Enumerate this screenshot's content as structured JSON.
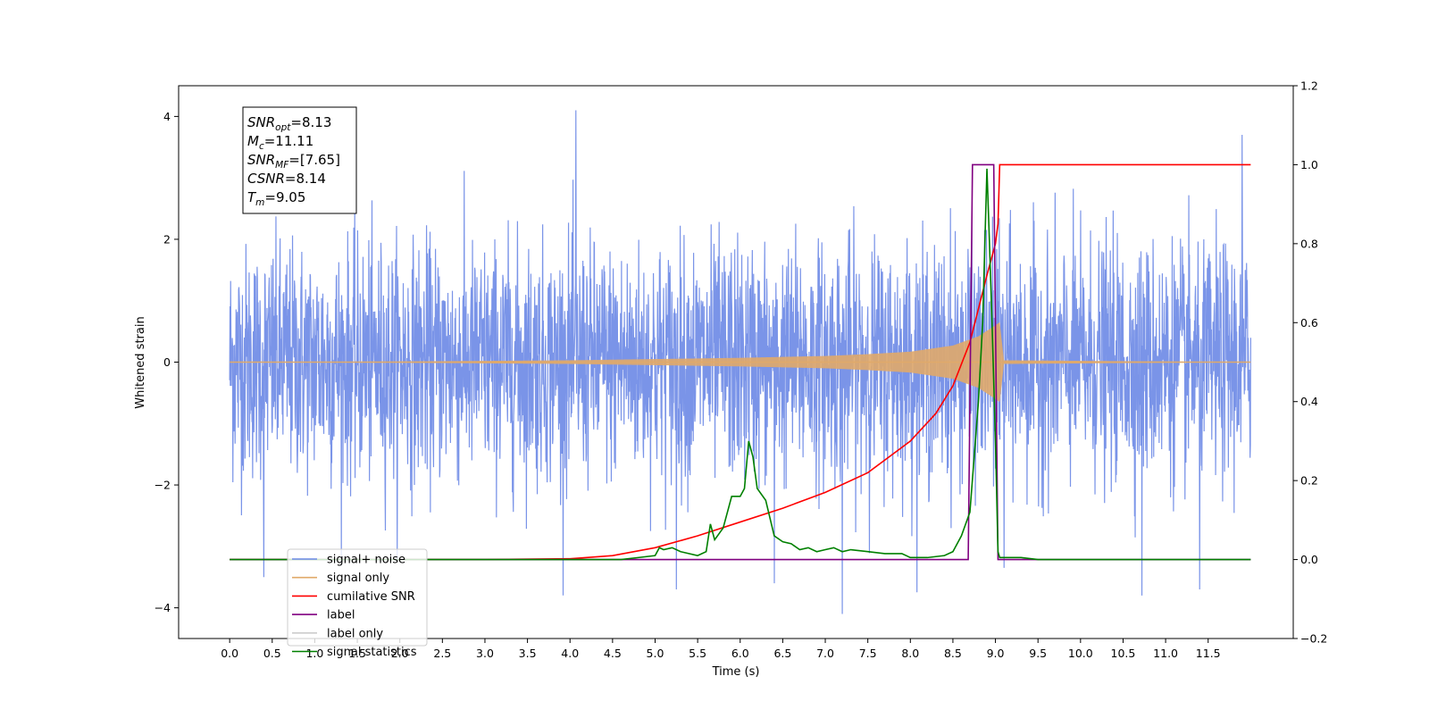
{
  "chart_data": {
    "type": "line",
    "xlabel": "Time (s)",
    "ylabel_left": "Whitened strain",
    "ylabel_right": "",
    "xlim": [
      -0.6,
      12.5
    ],
    "ylim_left": [
      -4.5,
      4.5
    ],
    "ylim_right": [
      -0.2,
      1.2
    ],
    "x_ticks": [
      0.0,
      0.5,
      1.0,
      1.5,
      2.0,
      2.5,
      3.0,
      3.5,
      4.0,
      4.5,
      5.0,
      5.5,
      6.0,
      6.5,
      7.0,
      7.5,
      8.0,
      8.5,
      9.0,
      9.5,
      10.0,
      10.5,
      11.0,
      11.5
    ],
    "x_tick_labels": [
      "0.0",
      "0.5",
      "1.0",
      "1.5",
      "2.0",
      "2.5",
      "3.0",
      "3.5",
      "4.0",
      "4.5",
      "5.0",
      "5.5",
      "6.0",
      "6.5",
      "7.0",
      "7.5",
      "8.0",
      "8.5",
      "9.0",
      "9.5",
      "10.0",
      "10.5",
      "11.0",
      "11.5"
    ],
    "y_left_ticks": [
      4,
      2,
      0,
      -2,
      -4
    ],
    "y_left_tick_labels": [
      "4",
      "2",
      "0",
      "−2",
      "−4"
    ],
    "y_right_ticks": [
      1.2,
      1.0,
      0.8,
      0.6,
      0.4,
      0.2,
      0.0,
      -0.2
    ],
    "y_right_tick_labels": [
      "1.2",
      "1.0",
      "0.8",
      "0.6",
      "0.4",
      "0.2",
      "0.0",
      "−0.2"
    ],
    "grid": false,
    "legend_position": "bottom-left",
    "series": [
      {
        "name": "signal+ noise",
        "axis": "left",
        "color": "#6b88e5",
        "kind": "noisy_strain",
        "x_range": [
          0.0,
          12.0
        ],
        "typical_amplitude": [
          -2.0,
          2.0
        ],
        "peak_extremes": [
          {
            "x": 0.4,
            "y": -3.5
          },
          {
            "x": 4.07,
            "y": 4.1
          },
          {
            "x": 5.25,
            "y": -3.7
          },
          {
            "x": 6.4,
            "y": -3.6
          },
          {
            "x": 7.2,
            "y": -4.1
          },
          {
            "x": 9.1,
            "y": -3.35
          },
          {
            "x": 10.72,
            "y": -3.8
          },
          {
            "x": 11.4,
            "y": -3.7
          },
          {
            "x": 11.9,
            "y": 3.7
          }
        ]
      },
      {
        "name": "signal only",
        "axis": "left",
        "color": "#e0a96a",
        "kind": "chirp_envelope",
        "x": [
          0.0,
          2.0,
          4.0,
          5.0,
          6.0,
          7.0,
          7.5,
          8.0,
          8.5,
          8.8,
          9.0,
          9.05,
          9.1,
          12.0
        ],
        "envelope": [
          0.0,
          0.01,
          0.03,
          0.05,
          0.07,
          0.1,
          0.13,
          0.17,
          0.27,
          0.42,
          0.6,
          0.65,
          0.03,
          0.0
        ]
      },
      {
        "name": "cumilative SNR",
        "axis": "right",
        "color": "#ff0000",
        "x": [
          0.0,
          3.0,
          4.0,
          4.5,
          5.0,
          5.5,
          6.0,
          6.5,
          7.0,
          7.5,
          8.0,
          8.3,
          8.5,
          8.7,
          8.9,
          9.0,
          9.03,
          9.05,
          12.0
        ],
        "values": [
          0.0,
          0.0,
          0.002,
          0.01,
          0.03,
          0.06,
          0.095,
          0.13,
          0.17,
          0.22,
          0.3,
          0.37,
          0.44,
          0.55,
          0.72,
          0.8,
          0.85,
          1.0,
          1.0
        ]
      },
      {
        "name": "label",
        "axis": "right",
        "color": "#800080",
        "x": [
          0.0,
          8.68,
          8.73,
          8.98,
          9.03,
          12.0
        ],
        "values": [
          0.0,
          0.0,
          1.0,
          1.0,
          0.0,
          0.0
        ]
      },
      {
        "name": "label only",
        "axis": "right",
        "color": "#cccccc",
        "x": [],
        "values": []
      },
      {
        "name": "signal statistics",
        "axis": "right",
        "color": "#008000",
        "x": [
          0.0,
          4.6,
          4.8,
          5.0,
          5.05,
          5.1,
          5.2,
          5.3,
          5.5,
          5.6,
          5.65,
          5.7,
          5.8,
          5.9,
          6.0,
          6.05,
          6.1,
          6.15,
          6.2,
          6.3,
          6.4,
          6.5,
          6.6,
          6.7,
          6.8,
          6.9,
          7.0,
          7.1,
          7.2,
          7.3,
          7.5,
          7.7,
          7.9,
          8.0,
          8.2,
          8.4,
          8.5,
          8.6,
          8.7,
          8.8,
          8.85,
          8.9,
          8.93,
          8.96,
          9.0,
          9.03,
          9.05,
          9.1,
          9.3,
          9.5,
          12.0
        ],
        "values": [
          0.0,
          0.0,
          0.005,
          0.01,
          0.03,
          0.025,
          0.03,
          0.02,
          0.01,
          0.02,
          0.09,
          0.05,
          0.08,
          0.16,
          0.16,
          0.18,
          0.3,
          0.26,
          0.18,
          0.15,
          0.06,
          0.045,
          0.04,
          0.025,
          0.03,
          0.02,
          0.025,
          0.03,
          0.02,
          0.025,
          0.02,
          0.015,
          0.015,
          0.005,
          0.005,
          0.01,
          0.02,
          0.06,
          0.12,
          0.4,
          0.6,
          0.99,
          0.8,
          0.6,
          0.3,
          0.02,
          0.005,
          0.005,
          0.005,
          0.0,
          0.0
        ]
      }
    ],
    "info_box": [
      {
        "main": "SNR",
        "sub": "opt",
        "value": "=8.13"
      },
      {
        "main": "M",
        "sub": "c",
        "value": "=11.11"
      },
      {
        "main": "SNR",
        "sub": "MF",
        "value": "=[7.65]"
      },
      {
        "main": "CSNR",
        "sub": "",
        "value": "=8.14"
      },
      {
        "main": "T",
        "sub": "m",
        "value": "=9.05"
      }
    ]
  }
}
